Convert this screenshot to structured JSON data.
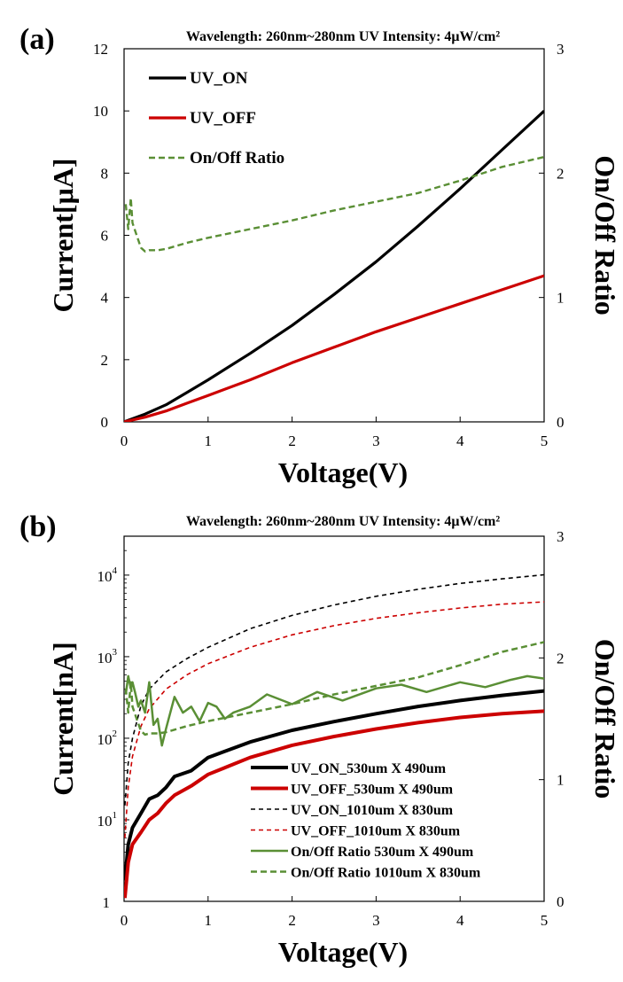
{
  "chart_data": [
    {
      "panel_label": "(a)",
      "type": "line",
      "title": "Wavelength: 260nm~280nm UV Intensity: 4μW/cm²",
      "xlabel": "Voltage(V)",
      "ylabel": "Current[μA]",
      "y2label": "On/Off Ratio",
      "xlim": [
        0,
        5
      ],
      "ylim": [
        0,
        12
      ],
      "y2lim": [
        0,
        3
      ],
      "x_ticks": [
        0,
        1,
        2,
        3,
        4,
        5
      ],
      "y_ticks": [
        0,
        2,
        4,
        6,
        8,
        10,
        12
      ],
      "y2_ticks": [
        0,
        1,
        2,
        3
      ],
      "grid": false,
      "legend_position": "top-left",
      "series": [
        {
          "name": "UV_ON",
          "axis": "left",
          "color": "#000000",
          "style": "solid",
          "x": [
            0,
            0.25,
            0.5,
            0.75,
            1,
            1.5,
            2,
            2.5,
            3,
            3.5,
            4,
            4.5,
            5
          ],
          "y": [
            0,
            0.25,
            0.55,
            0.95,
            1.35,
            2.2,
            3.1,
            4.1,
            5.15,
            6.3,
            7.5,
            8.75,
            10.0
          ]
        },
        {
          "name": "UV_OFF",
          "axis": "left",
          "color": "#cc0000",
          "style": "solid",
          "x": [
            0,
            0.25,
            0.5,
            0.75,
            1,
            1.5,
            2,
            2.5,
            3,
            3.5,
            4,
            4.5,
            5
          ],
          "y": [
            0,
            0.15,
            0.35,
            0.6,
            0.85,
            1.35,
            1.9,
            2.4,
            2.9,
            3.35,
            3.8,
            4.25,
            4.7
          ]
        },
        {
          "name": "On/Off Ratio",
          "axis": "right",
          "color": "#5a8f35",
          "style": "dashed",
          "x": [
            0.02,
            0.05,
            0.08,
            0.1,
            0.15,
            0.2,
            0.25,
            0.3,
            0.4,
            0.5,
            0.75,
            1,
            1.5,
            2,
            2.5,
            3,
            3.5,
            4,
            4.5,
            5
          ],
          "y": [
            1.75,
            1.55,
            1.8,
            1.6,
            1.5,
            1.4,
            1.37,
            1.38,
            1.38,
            1.39,
            1.44,
            1.48,
            1.55,
            1.62,
            1.7,
            1.77,
            1.84,
            1.94,
            2.05,
            2.13
          ]
        }
      ]
    },
    {
      "panel_label": "(b)",
      "type": "line",
      "title": "Wavelength: 260nm~280nm UV Intensity: 4μW/cm²",
      "xlabel": "Voltage(V)",
      "ylabel": "Current[nA]",
      "y2label": "On/Off Ratio",
      "xlim": [
        0,
        5
      ],
      "ylim": [
        1,
        30000
      ],
      "yscale": "log",
      "y2lim": [
        0,
        3
      ],
      "x_ticks": [
        0,
        1,
        2,
        3,
        4,
        5
      ],
      "y_ticks": [
        1,
        10,
        100,
        1000,
        10000
      ],
      "y_tick_labels": [
        {
          "base": "1",
          "exp": ""
        },
        {
          "base": "10",
          "exp": "1"
        },
        {
          "base": "10",
          "exp": "2"
        },
        {
          "base": "10",
          "exp": "3"
        },
        {
          "base": "10",
          "exp": "4"
        }
      ],
      "y2_ticks": [
        0,
        1,
        2,
        3
      ],
      "grid": false,
      "legend_position": "bottom-right",
      "series": [
        {
          "name": "UV_ON_530um X 490um",
          "axis": "left",
          "color": "#000000",
          "style": "solid",
          "width": 4,
          "x": [
            0.01,
            0.05,
            0.1,
            0.2,
            0.3,
            0.4,
            0.5,
            0.6,
            0.8,
            1,
            1.5,
            2,
            2.5,
            3,
            3.5,
            4,
            4.5,
            5
          ],
          "y": [
            1.8,
            5,
            8,
            12,
            18,
            20,
            25,
            34,
            40,
            58,
            90,
            125,
            160,
            200,
            245,
            290,
            335,
            380
          ]
        },
        {
          "name": "UV_OFF_530um X 490um",
          "axis": "left",
          "color": "#cc0000",
          "style": "solid",
          "width": 4,
          "x": [
            0.01,
            0.05,
            0.1,
            0.2,
            0.3,
            0.4,
            0.5,
            0.6,
            0.8,
            1,
            1.5,
            2,
            2.5,
            3,
            3.5,
            4,
            4.5,
            5
          ],
          "y": [
            1.1,
            3,
            5,
            7,
            10,
            12,
            16,
            20,
            26,
            36,
            58,
            82,
            105,
            130,
            155,
            180,
            200,
            215
          ]
        },
        {
          "name": "UV_ON_1010um X 830um",
          "axis": "left",
          "color": "#000000",
          "style": "dashed",
          "width": 1.6,
          "x": [
            0.01,
            0.05,
            0.1,
            0.2,
            0.3,
            0.5,
            0.75,
            1,
            1.5,
            2,
            2.5,
            3,
            3.5,
            4,
            4.5,
            5
          ],
          "y": [
            15,
            50,
            100,
            250,
            400,
            650,
            950,
            1300,
            2200,
            3200,
            4300,
            5500,
            6700,
            7900,
            9000,
            10100
          ]
        },
        {
          "name": "UV_OFF_1010um X 830um",
          "axis": "left",
          "color": "#cc0000",
          "style": "dashed",
          "width": 1.6,
          "x": [
            0.01,
            0.05,
            0.1,
            0.2,
            0.3,
            0.5,
            0.75,
            1,
            1.5,
            2,
            2.5,
            3,
            3.5,
            4,
            4.5,
            5
          ],
          "y": [
            6,
            25,
            60,
            140,
            230,
            400,
            600,
            820,
            1300,
            1850,
            2400,
            2950,
            3450,
            3950,
            4400,
            4700
          ]
        },
        {
          "name": "On/Off Ratio 530um X 490um",
          "axis": "right",
          "color": "#5a8f35",
          "style": "solid",
          "width": 2.5,
          "x": [
            0.02,
            0.05,
            0.08,
            0.1,
            0.13,
            0.17,
            0.2,
            0.25,
            0.3,
            0.35,
            0.4,
            0.45,
            0.5,
            0.6,
            0.7,
            0.8,
            0.9,
            1,
            1.1,
            1.2,
            1.3,
            1.5,
            1.7,
            2,
            2.3,
            2.6,
            3,
            3.3,
            3.6,
            4,
            4.3,
            4.6,
            4.8,
            5
          ],
          "y": [
            1.7,
            1.85,
            1.75,
            1.8,
            1.72,
            1.6,
            1.65,
            1.55,
            1.8,
            1.45,
            1.5,
            1.28,
            1.42,
            1.68,
            1.55,
            1.6,
            1.48,
            1.63,
            1.6,
            1.5,
            1.55,
            1.6,
            1.7,
            1.62,
            1.72,
            1.65,
            1.75,
            1.78,
            1.72,
            1.8,
            1.76,
            1.82,
            1.85,
            1.83
          ]
        },
        {
          "name": "On/Off Ratio 1010um X 830um",
          "axis": "right",
          "color": "#5a8f35",
          "style": "dashed",
          "width": 2.5,
          "x": [
            0.02,
            0.05,
            0.08,
            0.1,
            0.15,
            0.2,
            0.25,
            0.3,
            0.4,
            0.5,
            0.75,
            1,
            1.5,
            2,
            2.5,
            3,
            3.5,
            4,
            4.5,
            5
          ],
          "y": [
            1.75,
            1.55,
            1.8,
            1.6,
            1.5,
            1.4,
            1.37,
            1.38,
            1.38,
            1.39,
            1.44,
            1.48,
            1.55,
            1.62,
            1.7,
            1.77,
            1.84,
            1.94,
            2.05,
            2.13
          ]
        }
      ]
    }
  ]
}
